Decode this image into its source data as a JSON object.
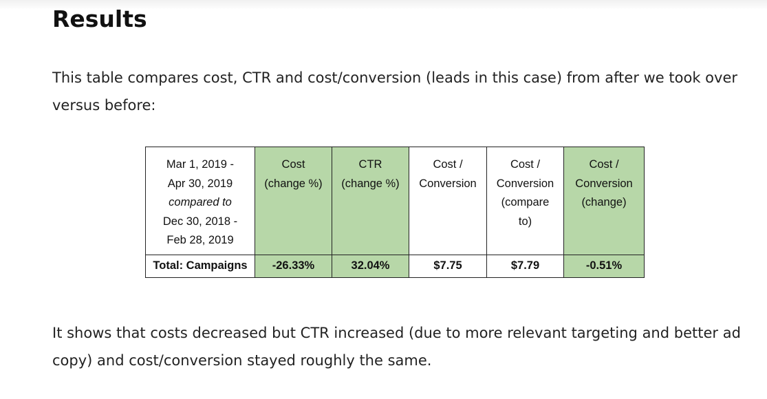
{
  "heading": "Results",
  "intro": "This table compares cost, CTR and cost/conversion (leads in this case) from after we took over versus before:",
  "table": {
    "date_range": {
      "line1": "Mar 1, 2019 -",
      "line2": "Apr 30, 2019",
      "compared": "compared to",
      "line3": "Dec 30, 2018 -",
      "line4": "Feb 28, 2019"
    },
    "headers": [
      {
        "l1": "Cost",
        "l2": "(change %)"
      },
      {
        "l1": "CTR",
        "l2": "(change %)"
      },
      {
        "l1": "Cost /",
        "l2": "Conversion"
      },
      {
        "l1": "Cost /",
        "l2": "Conversion",
        "l3": "(compare",
        "l4": "to)"
      },
      {
        "l1": "Cost /",
        "l2": "Conversion",
        "l3": "(change)"
      }
    ],
    "row": {
      "label": "Total: Campaigns",
      "values": [
        "-26.33%",
        "32.04%",
        "$7.75",
        "$7.79",
        "-0.51%"
      ]
    },
    "highlight_color": "#b7d7a8"
  },
  "conclusion": "It shows that costs decreased but CTR increased (due to more relevant targeting and better ad copy) and cost/conversion stayed roughly the same."
}
